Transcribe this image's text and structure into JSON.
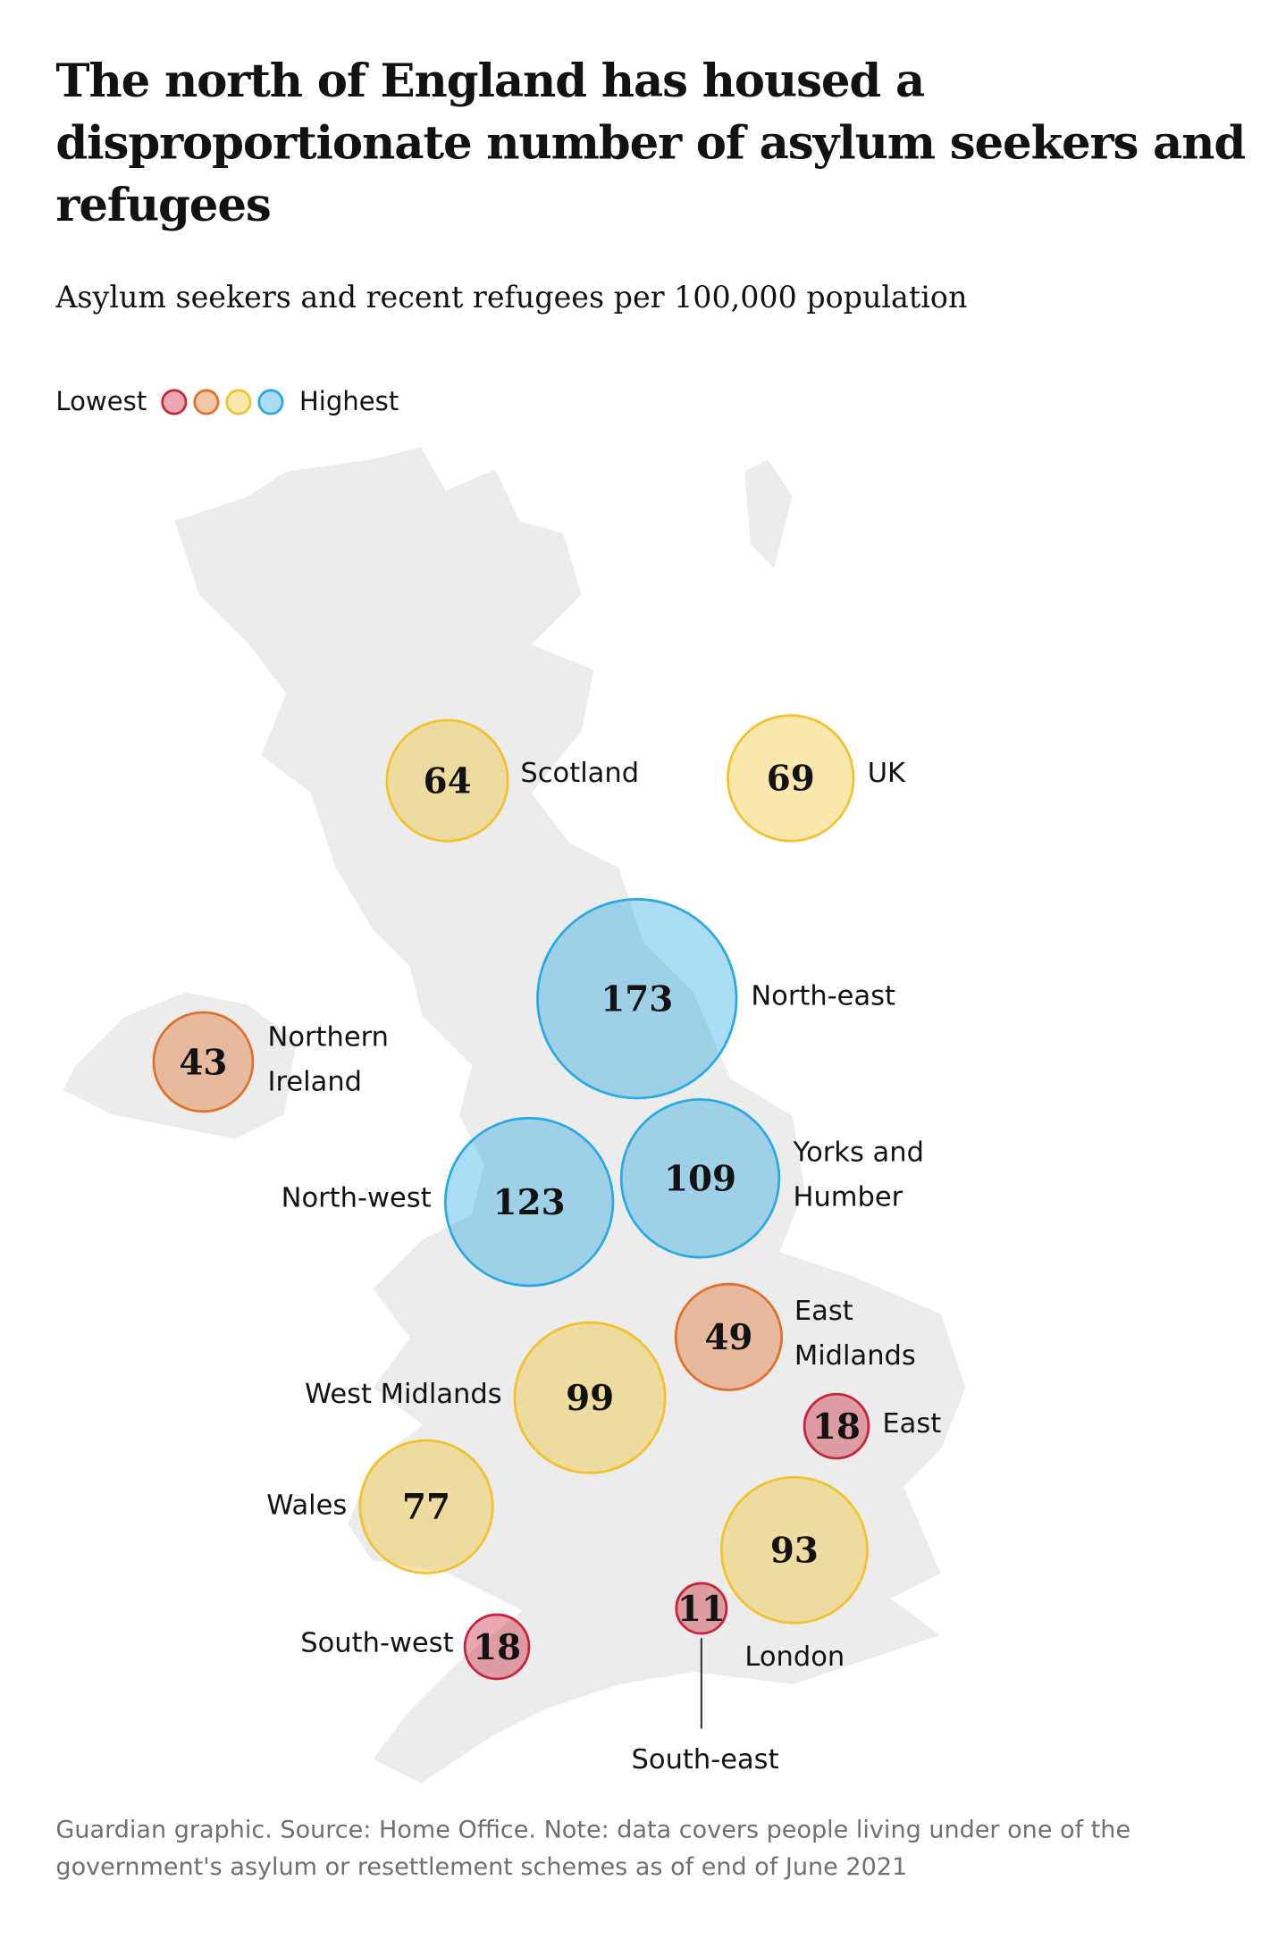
{
  "chart_data": {
    "type": "bubble-map",
    "title": "The north of England has housed a disproportionate number of asylum seekers and refugees",
    "subtitle": "Asylum seekers and recent refugees per 100,000 population",
    "legend": {
      "low_label": "Lowest",
      "high_label": "Highest",
      "colors": [
        "#c7243a",
        "#e0712b",
        "#f2c230",
        "#2aaae2"
      ]
    },
    "categories": [
      "Scotland",
      "UK",
      "North-east",
      "Northern Ireland",
      "North-west",
      "Yorks and Humber",
      "East Midlands",
      "West Midlands",
      "East",
      "Wales",
      "London",
      "South-east",
      "South-west"
    ],
    "values": [
      64,
      69,
      173,
      43,
      123,
      109,
      49,
      99,
      18,
      77,
      93,
      11,
      18
    ],
    "colors": [
      "#f2c230",
      "#f2c230",
      "#2aaae2",
      "#e0712b",
      "#2aaae2",
      "#2aaae2",
      "#e0712b",
      "#f2c230",
      "#c7243a",
      "#f2c230",
      "#f2c230",
      "#c7243a",
      "#c7243a"
    ],
    "source": "Guardian graphic. Source: Home Office. Note: data covers people living under one of the government's asylum or resettlement schemes as of end of June 2021"
  }
}
